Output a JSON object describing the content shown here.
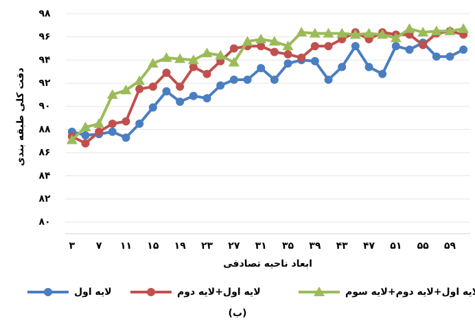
{
  "chart_data": {
    "type": "line",
    "y_label": "دقت کلی طبقه بندی",
    "x_label": "ابعاد ناحیه تصادفی",
    "caption": "(ب)",
    "categories": [
      "۳",
      null,
      "۷",
      null,
      "۱۱",
      null,
      "۱۵",
      null,
      "۱۹",
      null,
      "۲۳",
      null,
      "۲۷",
      null,
      "۳۱",
      null,
      "۳۵",
      null,
      "۳۹",
      null,
      "۴۳",
      null,
      "۴۷",
      null,
      "۵۱",
      null,
      "۵۵",
      null,
      "۵۹",
      null
    ],
    "series": [
      {
        "name": "لایه اول",
        "color": "#4a7ec0",
        "marker": "circle",
        "values": [
          87.8,
          87.5,
          87.6,
          87.8,
          87.3,
          88.5,
          89.9,
          91.3,
          90.4,
          90.9,
          90.7,
          91.8,
          92.3,
          92.3,
          93.3,
          92.3,
          93.7,
          94.0,
          93.9,
          92.3,
          93.4,
          95.2,
          93.4,
          92.8,
          95.2,
          94.9,
          95.5,
          94.3,
          94.3,
          94.9
        ]
      },
      {
        "name": "لایه اول+لایه دوم",
        "color": "#c0504d",
        "marker": "circle",
        "values": [
          87.4,
          86.8,
          87.8,
          88.5,
          88.7,
          91.5,
          91.7,
          92.9,
          91.7,
          93.4,
          92.8,
          93.9,
          95.0,
          95.2,
          95.2,
          94.7,
          94.5,
          94.2,
          95.2,
          95.2,
          95.8,
          96.4,
          95.8,
          96.4,
          96.2,
          96.2,
          95.3,
          96.3,
          96.5,
          96.2
        ]
      },
      {
        "name": "لایه اول+لایه دوم+لایه سوم",
        "color": "#9bbb59",
        "marker": "triangle",
        "values": [
          87.1,
          88.2,
          88.5,
          91.0,
          91.4,
          92.2,
          93.7,
          94.2,
          94.1,
          94.0,
          94.6,
          94.4,
          93.8,
          95.6,
          95.8,
          95.6,
          95.2,
          96.4,
          96.3,
          96.3,
          96.3,
          96.2,
          96.3,
          96.2,
          95.9,
          96.7,
          96.4,
          96.5,
          96.5,
          96.7
        ]
      }
    ],
    "ylim": [
      79,
      98
    ],
    "yticks": [
      {
        "value": 80,
        "label": "۸۰"
      },
      {
        "value": 82,
        "label": "۸۲"
      },
      {
        "value": 84,
        "label": "۸۴"
      },
      {
        "value": 86,
        "label": "۸۶"
      },
      {
        "value": 88,
        "label": "۸۸"
      },
      {
        "value": 90,
        "label": "۹۰"
      },
      {
        "value": 92,
        "label": "۹۲"
      },
      {
        "value": 94,
        "label": "۹۴"
      },
      {
        "value": 96,
        "label": "۹۶"
      },
      {
        "value": 98,
        "label": "۹۸"
      }
    ],
    "grid": true
  }
}
